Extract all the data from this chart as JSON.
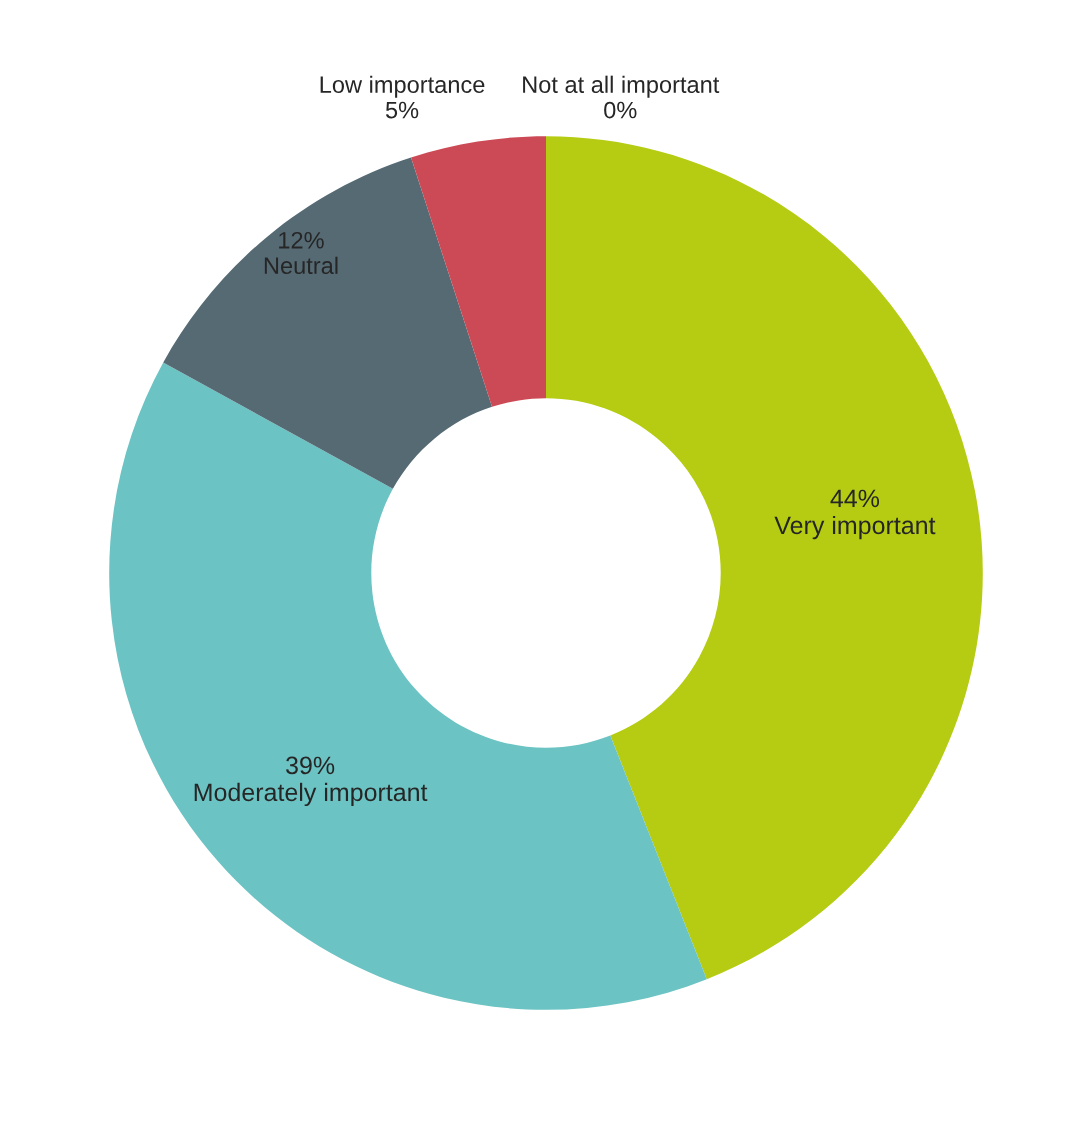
{
  "chart_data": {
    "type": "donut",
    "categories": [
      "Very important",
      "Moderately important",
      "Neutral",
      "Low importance",
      "Not at all important"
    ],
    "values": [
      44,
      39,
      12,
      5,
      0
    ],
    "value_labels": [
      "44%",
      "39%",
      "12%",
      "5%",
      "0%"
    ],
    "colors": [
      "#b5cc12",
      "#6cc3c3",
      "#566a74",
      "#cc4a55",
      "#8b0a10"
    ]
  }
}
